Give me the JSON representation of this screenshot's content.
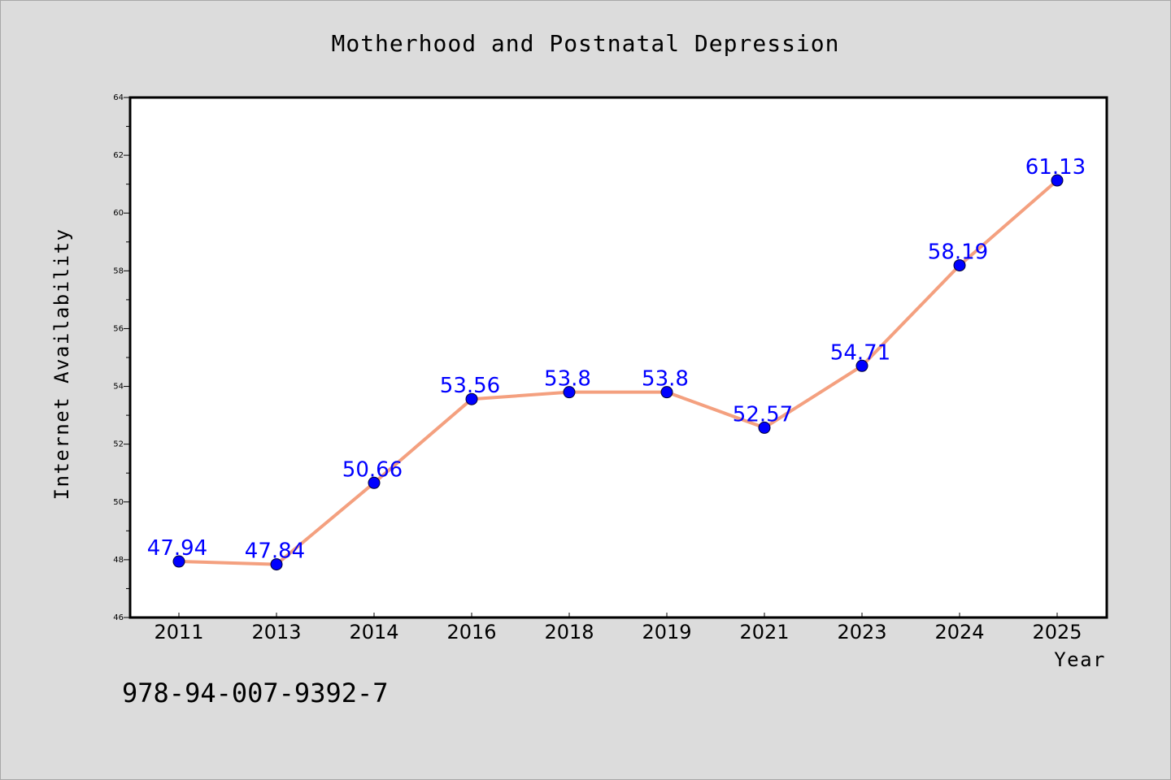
{
  "chart_data": {
    "type": "line",
    "title": "Motherhood and Postnatal Depression",
    "xlabel": "Year",
    "ylabel": "Internet Availability",
    "categories": [
      "2011",
      "2013",
      "2014",
      "2016",
      "2018",
      "2019",
      "2021",
      "2023",
      "2024",
      "2025"
    ],
    "series": [
      {
        "name": "",
        "values": [
          47.94,
          47.84,
          50.66,
          53.56,
          53.8,
          53.8,
          52.57,
          54.71,
          58.19,
          61.13
        ],
        "data_labels": [
          "47.94",
          "47.84",
          "50.66",
          "53.56",
          "53.8",
          "53.8",
          "52.57",
          "54.71",
          "58.19",
          "61.13"
        ]
      }
    ],
    "ylim": [
      46,
      64
    ],
    "yticks": [
      "46",
      "48",
      "50",
      "52",
      "54",
      "56",
      "58",
      "60",
      "62",
      "64"
    ],
    "grid": false,
    "legend": "none",
    "colors": {
      "line": "#f4a07f",
      "marker": "#0000ff",
      "data_label": "#0000ff",
      "plot_background": "#ffffff",
      "figure_background": "#dcdcdc"
    }
  },
  "footer_text": "978-94-007-9392-7"
}
